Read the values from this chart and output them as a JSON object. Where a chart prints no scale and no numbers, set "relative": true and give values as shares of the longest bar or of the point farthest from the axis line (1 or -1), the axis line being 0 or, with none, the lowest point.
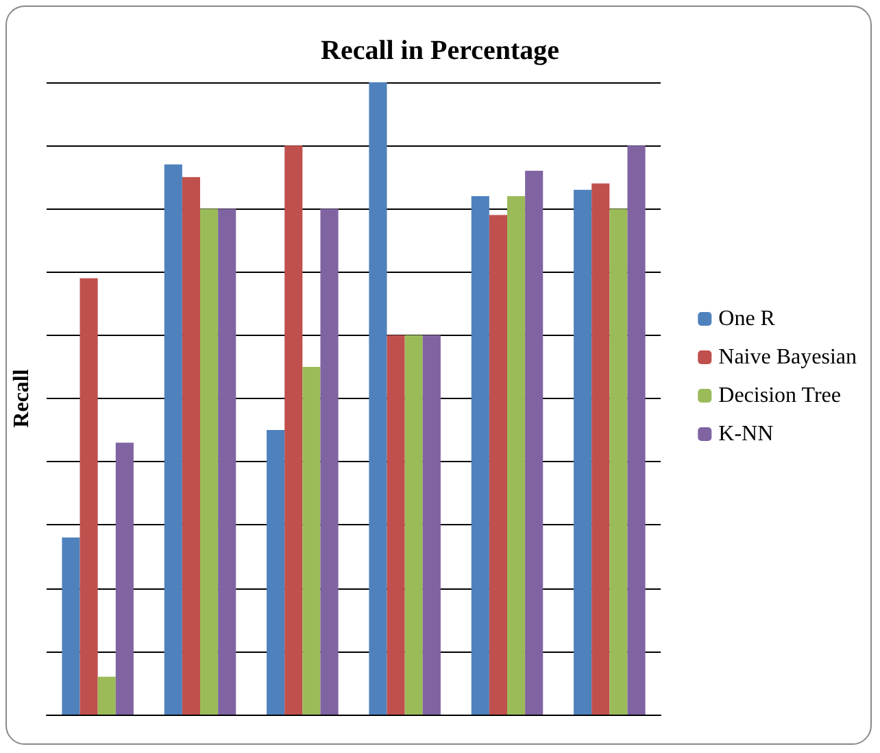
{
  "chart_data": {
    "type": "bar",
    "title": "Recall in Percentage",
    "ylabel": "Recall",
    "relative": true,
    "grid": "y",
    "legend": "right",
    "categories": [
      null,
      null,
      null,
      null,
      null,
      null
    ],
    "series": [
      {
        "name": "One R",
        "color": "#4f81bd",
        "values": [
          0.28,
          0.87,
          0.45,
          1,
          0.82,
          0.83
        ]
      },
      {
        "name": "Naive Bayesian",
        "color": "#c0504d",
        "values": [
          0.69,
          0.85,
          0.9,
          0.6,
          0.79,
          0.84
        ]
      },
      {
        "name": "Decision Tree",
        "color": "#9bbb59",
        "values": [
          0.06,
          0.8,
          0.55,
          0.6,
          0.82,
          0.8
        ]
      },
      {
        "name": "K-NN",
        "color": "#8064a2",
        "values": [
          0.43,
          0.8,
          0.8,
          0.6,
          0.86,
          0.9
        ]
      }
    ]
  }
}
